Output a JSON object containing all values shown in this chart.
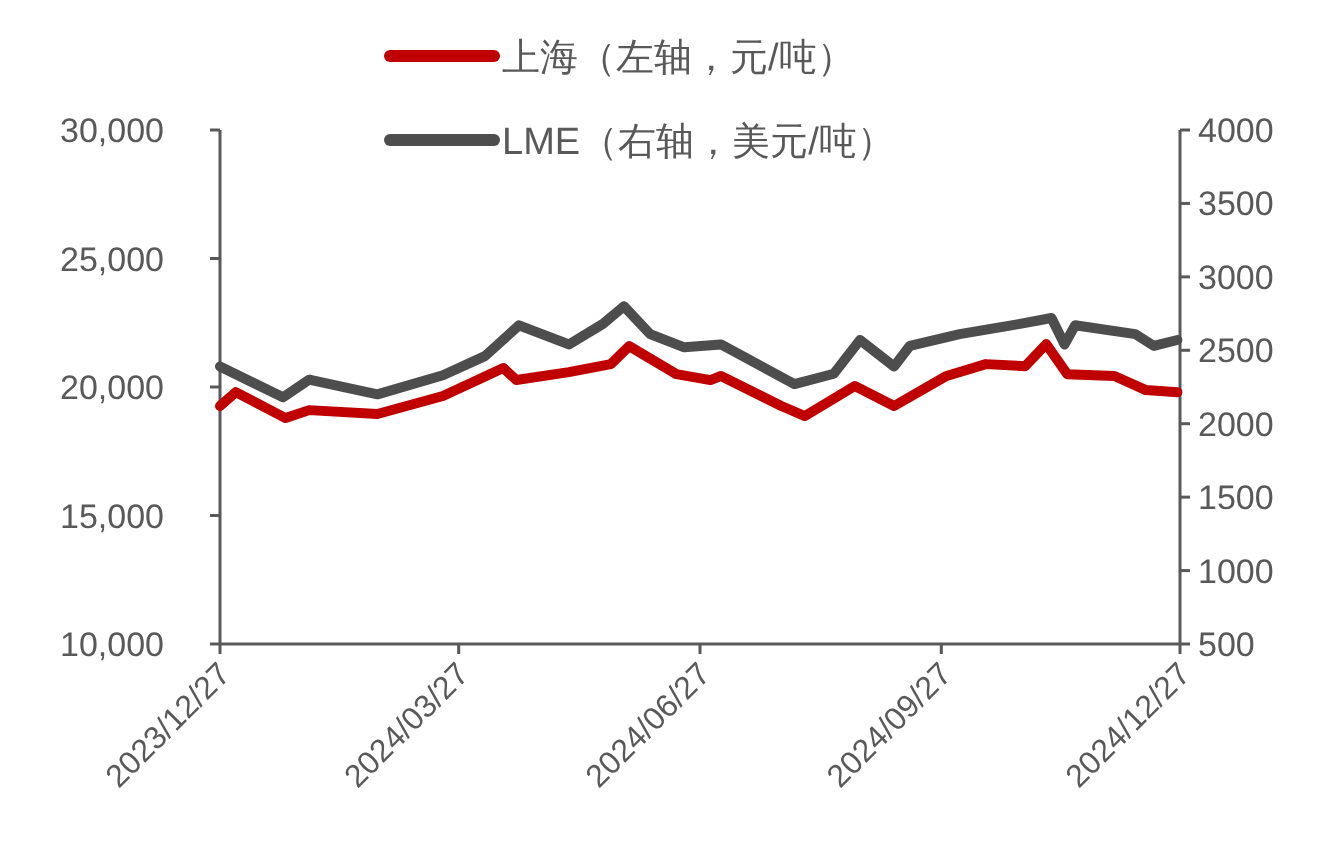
{
  "chart_data": {
    "type": "line",
    "legend": "top",
    "xlim": [
      "2023-12-27",
      "2024-12-27"
    ],
    "xticks": [
      {
        "value": "2023-12-27",
        "label": "2023/12/27"
      },
      {
        "value": "2024-03-27",
        "label": "2024/03/27"
      },
      {
        "value": "2024-06-27",
        "label": "2024/06/27"
      },
      {
        "value": "2024-09-27",
        "label": "2024/09/27"
      },
      {
        "value": "2024-12-27",
        "label": "2024/12/27"
      }
    ],
    "ylim": [
      10000,
      30000
    ],
    "yticks": [
      {
        "value": 10000,
        "label": "10,000"
      },
      {
        "value": 15000,
        "label": "15,000"
      },
      {
        "value": 20000,
        "label": "20,000"
      },
      {
        "value": 25000,
        "label": "25,000"
      },
      {
        "value": 30000,
        "label": "30,000"
      }
    ],
    "y2lim": [
      500,
      4000
    ],
    "y2ticks": [
      500,
      1000,
      1500,
      2000,
      2500,
      3000,
      3500,
      4000
    ],
    "series": [
      {
        "name": "上海（左轴，元/吨）",
        "color": "#c00000",
        "x": [
          "2023-12-27",
          "2024-01-02",
          "2024-01-21",
          "2024-01-30",
          "2024-02-25",
          "2024-03-21",
          "2024-04-13",
          "2024-04-18",
          "2024-05-08",
          "2024-05-24",
          "2024-05-31",
          "2024-06-18",
          "2024-07-01",
          "2024-07-05",
          "2024-07-28",
          "2024-08-06",
          "2024-08-25",
          "2024-09-09",
          "2024-09-29",
          "2024-10-14",
          "2024-10-29",
          "2024-11-06",
          "2024-11-14",
          "2024-12-02",
          "2024-12-14",
          "2024-12-26"
        ],
        "values": [
          19260,
          19800,
          18790,
          19100,
          18950,
          19650,
          20740,
          20270,
          20580,
          20890,
          21590,
          20500,
          20270,
          20430,
          19260,
          18870,
          20040,
          19260,
          20430,
          20890,
          20810,
          21670,
          20500,
          20430,
          19880,
          19800
        ]
      },
      {
        "name": "LME（右轴，美元/吨）",
        "color": "#4d4d4d",
        "axis": "y2",
        "x": [
          "2023-12-27",
          "2024-01-20",
          "2024-01-30",
          "2024-02-25",
          "2024-03-21",
          "2024-04-06",
          "2024-04-19",
          "2024-05-08",
          "2024-05-21",
          "2024-05-29",
          "2024-06-08",
          "2024-06-21",
          "2024-07-05",
          "2024-08-02",
          "2024-08-17",
          "2024-08-27",
          "2024-09-09",
          "2024-09-15",
          "2024-10-04",
          "2024-10-27",
          "2024-11-08",
          "2024-11-13",
          "2024-11-17",
          "2024-12-10",
          "2024-12-17",
          "2024-12-26"
        ],
        "values": [
          2390,
          2180,
          2300,
          2200,
          2330,
          2460,
          2670,
          2540,
          2680,
          2800,
          2610,
          2520,
          2540,
          2270,
          2340,
          2570,
          2390,
          2530,
          2610,
          2680,
          2720,
          2540,
          2670,
          2610,
          2530,
          2570
        ]
      }
    ]
  }
}
